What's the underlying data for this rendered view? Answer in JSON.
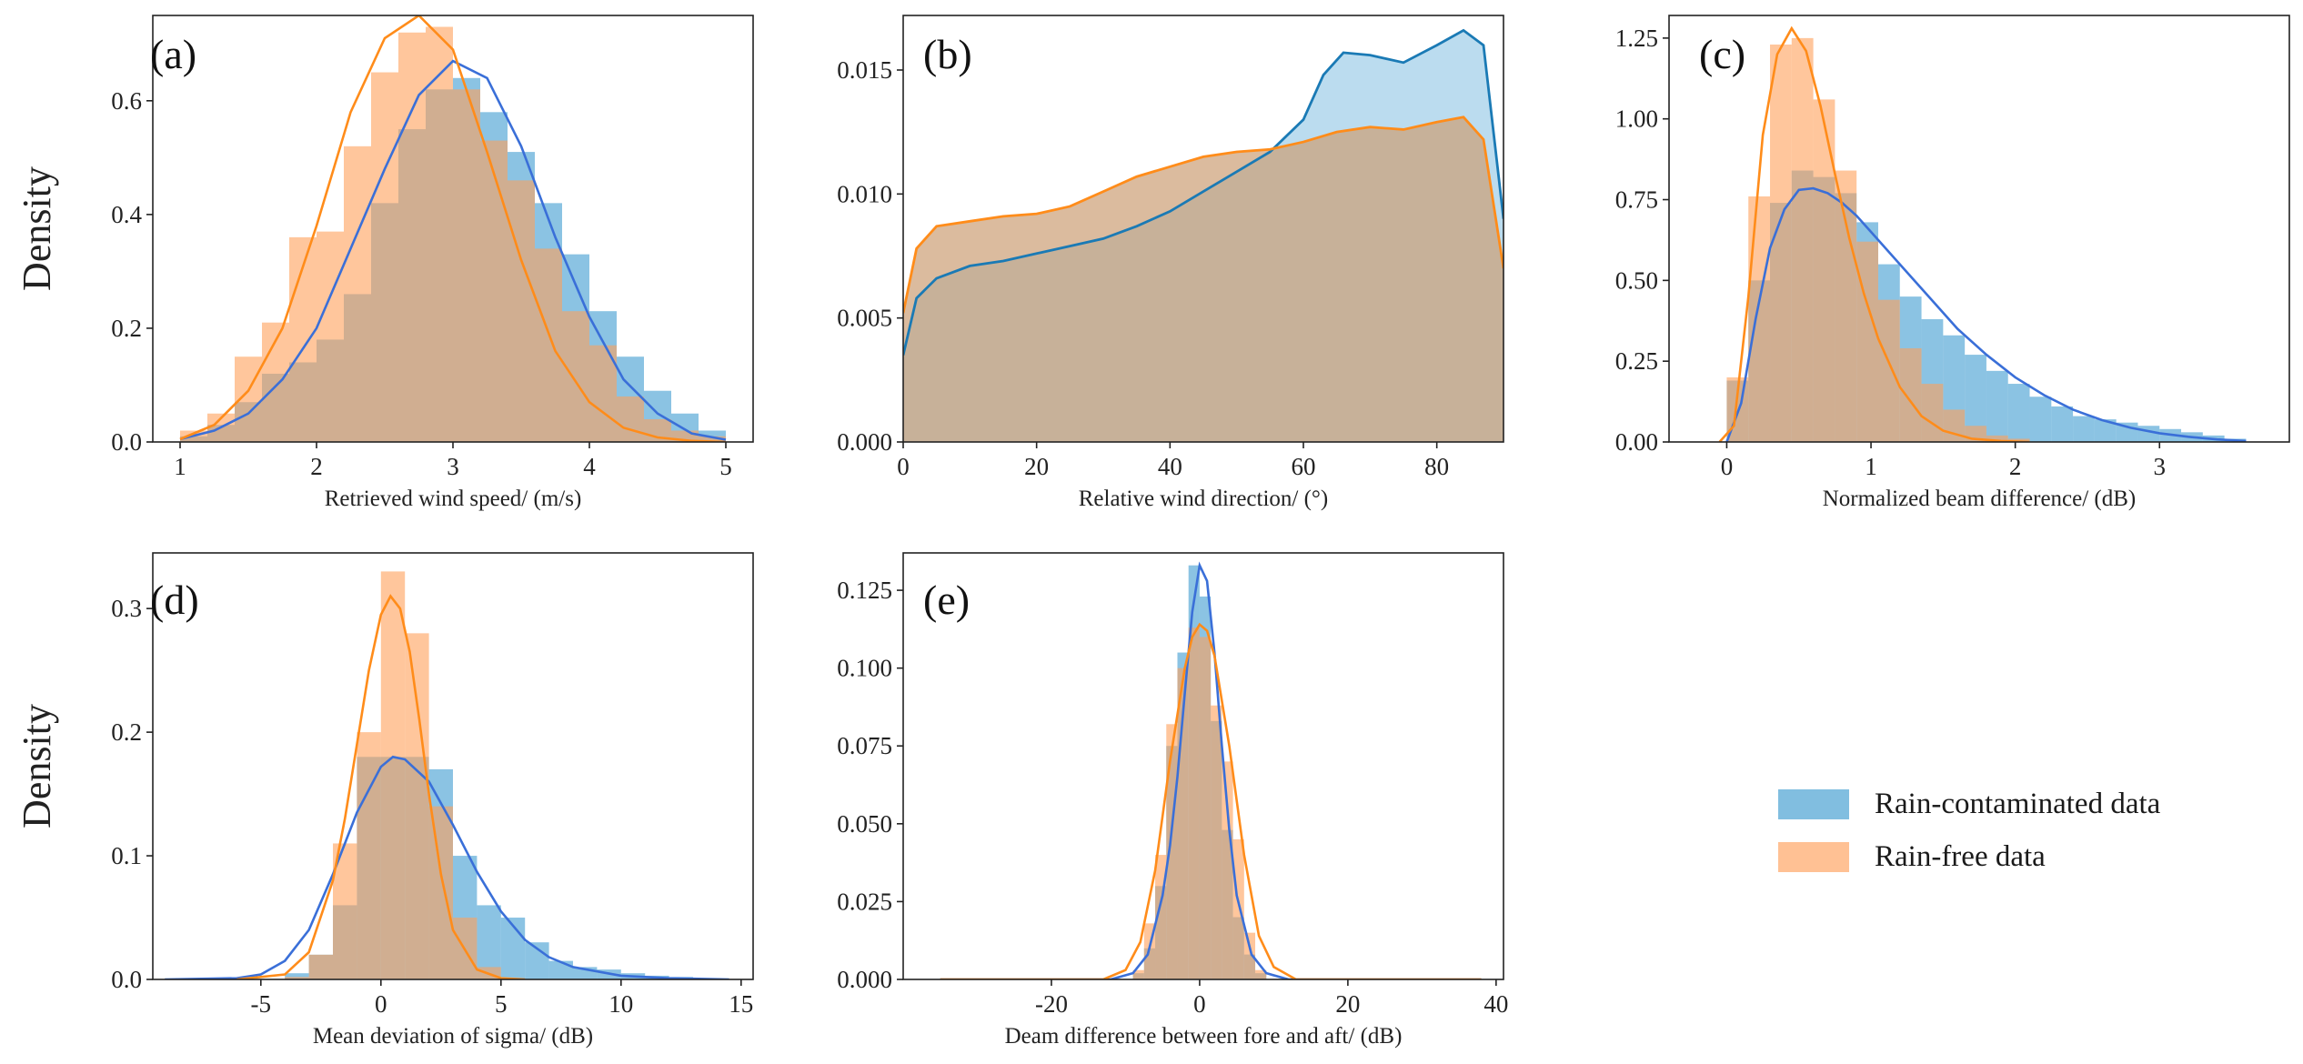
{
  "colors": {
    "rain": "#3d9bd0",
    "rain_line": "#3a6fd8",
    "free": "#ffa05a",
    "free_line": "#ff8c1a",
    "overlap": "#bd9e7e",
    "axis": "#222222"
  },
  "legend": {
    "items": [
      {
        "label": "Rain-contaminated data",
        "color": "#3d9bd0"
      },
      {
        "label": "Rain-free data",
        "color": "#ffa05a"
      }
    ]
  },
  "chart_data": [
    {
      "panel": "(a)",
      "type": "histogram_kde",
      "xlabel": "Retrieved wind speed/ (m/s)",
      "ylabel": "Density",
      "xlim": [
        0.8,
        5.2
      ],
      "ylim": [
        0,
        0.75
      ],
      "xticks": [
        1,
        2,
        3,
        4,
        5
      ],
      "yticks": [
        0.0,
        0.2,
        0.4,
        0.6
      ],
      "ytick_labels": [
        "0.0",
        "0.2",
        "0.4",
        "0.6"
      ],
      "bin_edges": [
        1.0,
        1.2,
        1.4,
        1.6,
        1.8,
        2.0,
        2.2,
        2.4,
        2.6,
        2.8,
        3.0,
        3.2,
        3.4,
        3.6,
        3.8,
        4.0,
        4.2,
        4.4,
        4.6,
        4.8,
        5.0
      ],
      "rain_hist": [
        0.01,
        0.03,
        0.07,
        0.12,
        0.14,
        0.18,
        0.26,
        0.42,
        0.55,
        0.62,
        0.64,
        0.58,
        0.51,
        0.42,
        0.33,
        0.23,
        0.15,
        0.09,
        0.05,
        0.02
      ],
      "free_hist": [
        0.02,
        0.05,
        0.15,
        0.21,
        0.36,
        0.37,
        0.52,
        0.65,
        0.72,
        0.73,
        0.62,
        0.53,
        0.46,
        0.34,
        0.23,
        0.17,
        0.08,
        0.04,
        0.02,
        0.01
      ],
      "rain_kde": {
        "x": [
          1.0,
          1.25,
          1.5,
          1.75,
          2.0,
          2.25,
          2.5,
          2.75,
          3.0,
          3.25,
          3.5,
          3.75,
          4.0,
          4.25,
          4.5,
          4.75,
          5.0
        ],
        "y": [
          0.005,
          0.02,
          0.05,
          0.11,
          0.2,
          0.34,
          0.48,
          0.61,
          0.67,
          0.64,
          0.52,
          0.36,
          0.22,
          0.11,
          0.05,
          0.015,
          0.004
        ]
      },
      "free_kde": {
        "x": [
          1.0,
          1.25,
          1.5,
          1.75,
          2.0,
          2.25,
          2.5,
          2.75,
          3.0,
          3.25,
          3.5,
          3.75,
          4.0,
          4.25,
          4.5,
          4.75,
          5.0
        ],
        "y": [
          0.005,
          0.03,
          0.09,
          0.2,
          0.38,
          0.58,
          0.71,
          0.75,
          0.69,
          0.51,
          0.32,
          0.16,
          0.07,
          0.025,
          0.008,
          0.002,
          0.0
        ]
      }
    },
    {
      "panel": "(b)",
      "type": "kde_area",
      "xlabel": "Relative wind direction/ (°)",
      "ylabel": "",
      "xlim": [
        0,
        90
      ],
      "ylim": [
        0,
        0.0172
      ],
      "xticks": [
        0,
        20,
        40,
        60,
        80
      ],
      "yticks": [
        0.0,
        0.005,
        0.01,
        0.015
      ],
      "ytick_labels": [
        "0.000",
        "0.005",
        "0.010",
        "0.015"
      ],
      "rain_kde": {
        "x": [
          0,
          2,
          5,
          10,
          15,
          20,
          25,
          30,
          35,
          40,
          45,
          50,
          55,
          60,
          63,
          66,
          70,
          75,
          80,
          84,
          87,
          90
        ],
        "y": [
          0.0035,
          0.0058,
          0.0066,
          0.0071,
          0.0073,
          0.0076,
          0.0079,
          0.0082,
          0.0087,
          0.0093,
          0.0101,
          0.0109,
          0.0117,
          0.013,
          0.0148,
          0.0157,
          0.0156,
          0.0153,
          0.016,
          0.0166,
          0.016,
          0.009
        ]
      },
      "free_kde": {
        "x": [
          0,
          2,
          5,
          10,
          15,
          20,
          25,
          30,
          35,
          40,
          45,
          50,
          55,
          60,
          65,
          70,
          75,
          80,
          84,
          87,
          90
        ],
        "y": [
          0.0052,
          0.0078,
          0.0087,
          0.0089,
          0.0091,
          0.0092,
          0.0095,
          0.0101,
          0.0107,
          0.0111,
          0.0115,
          0.0117,
          0.0118,
          0.0121,
          0.0125,
          0.0127,
          0.0126,
          0.0129,
          0.0131,
          0.0122,
          0.007
        ]
      }
    },
    {
      "panel": "(c)",
      "type": "histogram_kde",
      "xlabel": "Normalized beam difference/ (dB)",
      "ylabel": "",
      "xlim": [
        -0.4,
        3.9
      ],
      "ylim": [
        0,
        1.32
      ],
      "xticks": [
        0,
        1,
        2,
        3
      ],
      "yticks": [
        0.0,
        0.25,
        0.5,
        0.75,
        1.0,
        1.25
      ],
      "ytick_labels": [
        "0.00",
        "0.25",
        "0.50",
        "0.75",
        "1.00",
        "1.25"
      ],
      "bin_edges": [
        0.0,
        0.15,
        0.3,
        0.45,
        0.6,
        0.75,
        0.9,
        1.05,
        1.2,
        1.35,
        1.5,
        1.65,
        1.8,
        1.95,
        2.1,
        2.25,
        2.4,
        2.55,
        2.7,
        2.85,
        3.0,
        3.15,
        3.3,
        3.45,
        3.6
      ],
      "rain_hist": [
        0.19,
        0.5,
        0.74,
        0.84,
        0.82,
        0.77,
        0.68,
        0.55,
        0.45,
        0.38,
        0.33,
        0.27,
        0.22,
        0.18,
        0.14,
        0.11,
        0.08,
        0.07,
        0.06,
        0.05,
        0.04,
        0.03,
        0.02,
        0.01
      ],
      "free_hist": [
        0.2,
        0.76,
        1.23,
        1.25,
        1.06,
        0.84,
        0.62,
        0.44,
        0.29,
        0.18,
        0.1,
        0.05,
        0.02,
        0.01,
        0.0,
        0.0,
        0.0,
        0.0,
        0.0,
        0.0,
        0.0,
        0.0,
        0.0,
        0.0
      ],
      "rain_kde": {
        "x": [
          0.0,
          0.1,
          0.2,
          0.3,
          0.4,
          0.5,
          0.6,
          0.7,
          0.8,
          0.9,
          1.0,
          1.2,
          1.4,
          1.6,
          1.8,
          2.0,
          2.2,
          2.4,
          2.6,
          2.8,
          3.0,
          3.2,
          3.4,
          3.6
        ],
        "y": [
          0.0,
          0.12,
          0.38,
          0.6,
          0.72,
          0.78,
          0.785,
          0.77,
          0.74,
          0.7,
          0.65,
          0.55,
          0.45,
          0.35,
          0.27,
          0.2,
          0.145,
          0.1,
          0.068,
          0.044,
          0.027,
          0.016,
          0.008,
          0.003
        ]
      },
      "free_kde": {
        "x": [
          -0.05,
          0.05,
          0.15,
          0.25,
          0.35,
          0.45,
          0.55,
          0.65,
          0.75,
          0.85,
          0.95,
          1.05,
          1.2,
          1.35,
          1.5,
          1.7,
          1.9,
          2.1
        ],
        "y": [
          0.0,
          0.05,
          0.45,
          0.95,
          1.2,
          1.28,
          1.21,
          1.04,
          0.83,
          0.63,
          0.46,
          0.32,
          0.17,
          0.08,
          0.035,
          0.01,
          0.003,
          0.0
        ]
      }
    },
    {
      "panel": "(d)",
      "type": "histogram_kde",
      "xlabel": "Mean deviation of sigma/ (dB)",
      "ylabel": "Density",
      "xlim": [
        -9.5,
        15.5
      ],
      "ylim": [
        0,
        0.345
      ],
      "xticks": [
        -5,
        0,
        5,
        10,
        15
      ],
      "yticks": [
        0.0,
        0.1,
        0.2,
        0.3
      ],
      "ytick_labels": [
        "0.0",
        "0.1",
        "0.2",
        "0.3"
      ],
      "bin_edges": [
        -4,
        -3,
        -2,
        -1,
        0,
        1,
        2,
        3,
        4,
        5,
        6,
        7,
        8,
        9,
        10,
        11,
        12,
        13,
        14
      ],
      "rain_hist": [
        0.005,
        0.02,
        0.06,
        0.18,
        0.18,
        0.18,
        0.17,
        0.1,
        0.06,
        0.05,
        0.03,
        0.015,
        0.01,
        0.008,
        0.005,
        0.003,
        0.002,
        0.001
      ],
      "free_hist": [
        0.002,
        0.02,
        0.11,
        0.2,
        0.33,
        0.28,
        0.14,
        0.05,
        0.01,
        0.0,
        0.0,
        0.0,
        0.0,
        0.0,
        0.0,
        0.0,
        0.0,
        0.0
      ],
      "rain_kde": {
        "x": [
          -9,
          -6,
          -5,
          -4,
          -3,
          -2,
          -1,
          0,
          0.5,
          1,
          2,
          3,
          4,
          5,
          6,
          7,
          8,
          10,
          12,
          14.5
        ],
        "y": [
          0.0,
          0.001,
          0.004,
          0.015,
          0.04,
          0.085,
          0.135,
          0.172,
          0.18,
          0.178,
          0.16,
          0.125,
          0.087,
          0.055,
          0.032,
          0.018,
          0.01,
          0.003,
          0.001,
          0.0
        ]
      },
      "free_kde": {
        "x": [
          -6,
          -4,
          -3,
          -2,
          -1.5,
          -1,
          -0.5,
          0,
          0.4,
          0.8,
          1.2,
          1.6,
          2,
          2.5,
          3,
          4,
          5,
          6
        ],
        "y": [
          0.0,
          0.004,
          0.022,
          0.08,
          0.13,
          0.19,
          0.25,
          0.295,
          0.31,
          0.3,
          0.265,
          0.21,
          0.15,
          0.085,
          0.04,
          0.008,
          0.001,
          0.0
        ]
      }
    },
    {
      "panel": "(e)",
      "type": "histogram_kde",
      "xlabel": "Deam difference between fore and aft/ (dB)",
      "ylabel": "",
      "xlim": [
        -40,
        41
      ],
      "ylim": [
        0,
        0.137
      ],
      "xticks": [
        -20,
        0,
        20,
        40
      ],
      "yticks": [
        0.0,
        0.025,
        0.05,
        0.075,
        0.1,
        0.125
      ],
      "ytick_labels": [
        "0.000",
        "0.025",
        "0.050",
        "0.075",
        "0.100",
        "0.125"
      ],
      "bin_edges": [
        -9,
        -7.5,
        -6,
        -4.5,
        -3,
        -1.5,
        0,
        1.5,
        3,
        4.5,
        6,
        7.5,
        9
      ],
      "rain_hist": [
        0.002,
        0.01,
        0.03,
        0.075,
        0.105,
        0.133,
        0.123,
        0.083,
        0.048,
        0.02,
        0.008,
        0.002
      ],
      "free_hist": [
        0.003,
        0.018,
        0.04,
        0.082,
        0.1,
        0.113,
        0.11,
        0.088,
        0.07,
        0.045,
        0.015,
        0.003
      ],
      "rain_kde": {
        "x": [
          -35,
          -12,
          -9,
          -7,
          -5,
          -4,
          -3,
          -2,
          -1,
          0,
          1,
          2,
          3,
          4,
          5,
          7,
          9,
          12,
          38
        ],
        "y": [
          0.0,
          0.0,
          0.002,
          0.008,
          0.027,
          0.043,
          0.065,
          0.092,
          0.118,
          0.133,
          0.128,
          0.105,
          0.075,
          0.048,
          0.027,
          0.008,
          0.002,
          0.0,
          0.0
        ]
      },
      "free_kde": {
        "x": [
          -35,
          -13,
          -10,
          -8,
          -6,
          -4,
          -2,
          -1,
          0,
          1,
          2,
          4,
          6,
          8,
          10,
          13,
          38
        ],
        "y": [
          0.0,
          0.0,
          0.003,
          0.012,
          0.035,
          0.07,
          0.1,
          0.11,
          0.114,
          0.112,
          0.104,
          0.075,
          0.04,
          0.014,
          0.004,
          0.0,
          0.0
        ]
      }
    }
  ]
}
